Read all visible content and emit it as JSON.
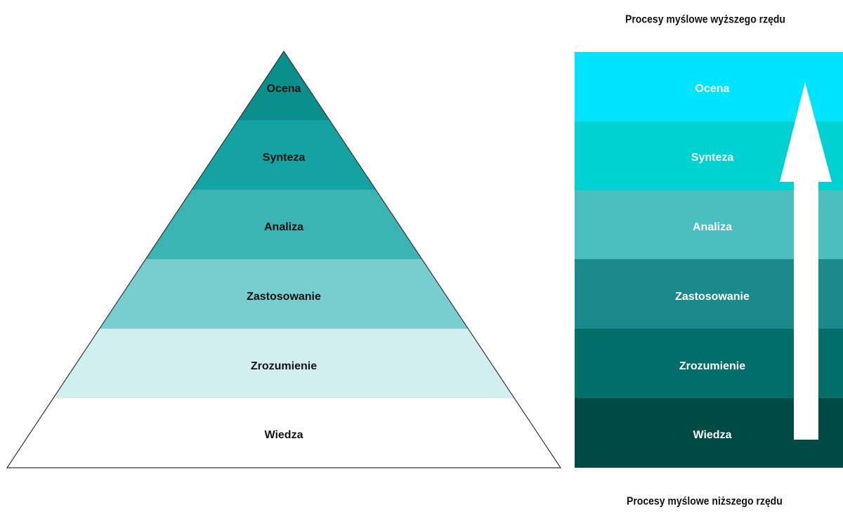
{
  "captions": {
    "top": "Procesy myślowe wyższego rzędu",
    "bottom": "Procesy myślowe niższego rzędu"
  },
  "pyramid": {
    "levels": [
      {
        "label": "Ocena",
        "color": "#0b8f8c"
      },
      {
        "label": "Synteza",
        "color": "#14a2a2"
      },
      {
        "label": "Analiza",
        "color": "#3bb4b4"
      },
      {
        "label": "Zastosowanie",
        "color": "#78cece"
      },
      {
        "label": "Zrozumienie",
        "color": "#d2eff0"
      },
      {
        "label": "Wiedza",
        "color": "#ffffff"
      }
    ],
    "label_color": "#111111",
    "outline_color": "#333333"
  },
  "ladder": {
    "levels": [
      {
        "label": "Ocena",
        "color": "#00e5ff"
      },
      {
        "label": "Synteza",
        "color": "#00d2d2"
      },
      {
        "label": "Analiza",
        "color": "#4bbfbf"
      },
      {
        "label": "Zastosowanie",
        "color": "#1a8b8a"
      },
      {
        "label": "Zrozumienie",
        "color": "#026e6a"
      },
      {
        "label": "Wiedza",
        "color": "#004a46"
      }
    ],
    "label_color": "#ffffff",
    "arrow_color": "#ffffff"
  }
}
